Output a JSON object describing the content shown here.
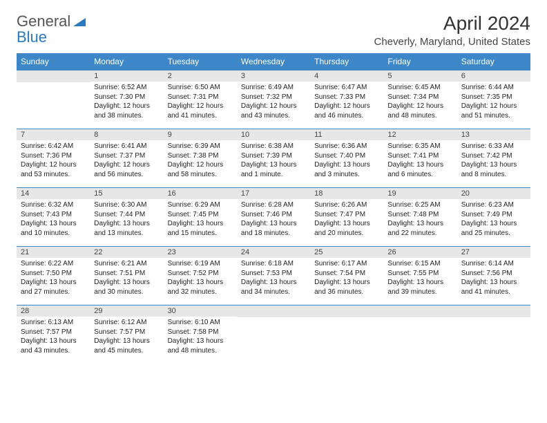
{
  "brand": {
    "part1": "General",
    "part2": "Blue"
  },
  "title": "April 2024",
  "location": "Cheverly, Maryland, United States",
  "colors": {
    "header_bg": "#3d87c9",
    "header_text": "#ffffff",
    "daynum_bg": "#e7e7e7",
    "rule": "#3d87c9",
    "brand_blue": "#2a7ac0",
    "brand_gray": "#555555",
    "body_text": "#222222"
  },
  "weekdays": [
    "Sunday",
    "Monday",
    "Tuesday",
    "Wednesday",
    "Thursday",
    "Friday",
    "Saturday"
  ],
  "weeks": [
    [
      null,
      {
        "n": "1",
        "sr": "Sunrise: 6:52 AM",
        "ss": "Sunset: 7:30 PM",
        "d1": "Daylight: 12 hours",
        "d2": "and 38 minutes."
      },
      {
        "n": "2",
        "sr": "Sunrise: 6:50 AM",
        "ss": "Sunset: 7:31 PM",
        "d1": "Daylight: 12 hours",
        "d2": "and 41 minutes."
      },
      {
        "n": "3",
        "sr": "Sunrise: 6:49 AM",
        "ss": "Sunset: 7:32 PM",
        "d1": "Daylight: 12 hours",
        "d2": "and 43 minutes."
      },
      {
        "n": "4",
        "sr": "Sunrise: 6:47 AM",
        "ss": "Sunset: 7:33 PM",
        "d1": "Daylight: 12 hours",
        "d2": "and 46 minutes."
      },
      {
        "n": "5",
        "sr": "Sunrise: 6:45 AM",
        "ss": "Sunset: 7:34 PM",
        "d1": "Daylight: 12 hours",
        "d2": "and 48 minutes."
      },
      {
        "n": "6",
        "sr": "Sunrise: 6:44 AM",
        "ss": "Sunset: 7:35 PM",
        "d1": "Daylight: 12 hours",
        "d2": "and 51 minutes."
      }
    ],
    [
      {
        "n": "7",
        "sr": "Sunrise: 6:42 AM",
        "ss": "Sunset: 7:36 PM",
        "d1": "Daylight: 12 hours",
        "d2": "and 53 minutes."
      },
      {
        "n": "8",
        "sr": "Sunrise: 6:41 AM",
        "ss": "Sunset: 7:37 PM",
        "d1": "Daylight: 12 hours",
        "d2": "and 56 minutes."
      },
      {
        "n": "9",
        "sr": "Sunrise: 6:39 AM",
        "ss": "Sunset: 7:38 PM",
        "d1": "Daylight: 12 hours",
        "d2": "and 58 minutes."
      },
      {
        "n": "10",
        "sr": "Sunrise: 6:38 AM",
        "ss": "Sunset: 7:39 PM",
        "d1": "Daylight: 13 hours",
        "d2": "and 1 minute."
      },
      {
        "n": "11",
        "sr": "Sunrise: 6:36 AM",
        "ss": "Sunset: 7:40 PM",
        "d1": "Daylight: 13 hours",
        "d2": "and 3 minutes."
      },
      {
        "n": "12",
        "sr": "Sunrise: 6:35 AM",
        "ss": "Sunset: 7:41 PM",
        "d1": "Daylight: 13 hours",
        "d2": "and 6 minutes."
      },
      {
        "n": "13",
        "sr": "Sunrise: 6:33 AM",
        "ss": "Sunset: 7:42 PM",
        "d1": "Daylight: 13 hours",
        "d2": "and 8 minutes."
      }
    ],
    [
      {
        "n": "14",
        "sr": "Sunrise: 6:32 AM",
        "ss": "Sunset: 7:43 PM",
        "d1": "Daylight: 13 hours",
        "d2": "and 10 minutes."
      },
      {
        "n": "15",
        "sr": "Sunrise: 6:30 AM",
        "ss": "Sunset: 7:44 PM",
        "d1": "Daylight: 13 hours",
        "d2": "and 13 minutes."
      },
      {
        "n": "16",
        "sr": "Sunrise: 6:29 AM",
        "ss": "Sunset: 7:45 PM",
        "d1": "Daylight: 13 hours",
        "d2": "and 15 minutes."
      },
      {
        "n": "17",
        "sr": "Sunrise: 6:28 AM",
        "ss": "Sunset: 7:46 PM",
        "d1": "Daylight: 13 hours",
        "d2": "and 18 minutes."
      },
      {
        "n": "18",
        "sr": "Sunrise: 6:26 AM",
        "ss": "Sunset: 7:47 PM",
        "d1": "Daylight: 13 hours",
        "d2": "and 20 minutes."
      },
      {
        "n": "19",
        "sr": "Sunrise: 6:25 AM",
        "ss": "Sunset: 7:48 PM",
        "d1": "Daylight: 13 hours",
        "d2": "and 22 minutes."
      },
      {
        "n": "20",
        "sr": "Sunrise: 6:23 AM",
        "ss": "Sunset: 7:49 PM",
        "d1": "Daylight: 13 hours",
        "d2": "and 25 minutes."
      }
    ],
    [
      {
        "n": "21",
        "sr": "Sunrise: 6:22 AM",
        "ss": "Sunset: 7:50 PM",
        "d1": "Daylight: 13 hours",
        "d2": "and 27 minutes."
      },
      {
        "n": "22",
        "sr": "Sunrise: 6:21 AM",
        "ss": "Sunset: 7:51 PM",
        "d1": "Daylight: 13 hours",
        "d2": "and 30 minutes."
      },
      {
        "n": "23",
        "sr": "Sunrise: 6:19 AM",
        "ss": "Sunset: 7:52 PM",
        "d1": "Daylight: 13 hours",
        "d2": "and 32 minutes."
      },
      {
        "n": "24",
        "sr": "Sunrise: 6:18 AM",
        "ss": "Sunset: 7:53 PM",
        "d1": "Daylight: 13 hours",
        "d2": "and 34 minutes."
      },
      {
        "n": "25",
        "sr": "Sunrise: 6:17 AM",
        "ss": "Sunset: 7:54 PM",
        "d1": "Daylight: 13 hours",
        "d2": "and 36 minutes."
      },
      {
        "n": "26",
        "sr": "Sunrise: 6:15 AM",
        "ss": "Sunset: 7:55 PM",
        "d1": "Daylight: 13 hours",
        "d2": "and 39 minutes."
      },
      {
        "n": "27",
        "sr": "Sunrise: 6:14 AM",
        "ss": "Sunset: 7:56 PM",
        "d1": "Daylight: 13 hours",
        "d2": "and 41 minutes."
      }
    ],
    [
      {
        "n": "28",
        "sr": "Sunrise: 6:13 AM",
        "ss": "Sunset: 7:57 PM",
        "d1": "Daylight: 13 hours",
        "d2": "and 43 minutes."
      },
      {
        "n": "29",
        "sr": "Sunrise: 6:12 AM",
        "ss": "Sunset: 7:57 PM",
        "d1": "Daylight: 13 hours",
        "d2": "and 45 minutes."
      },
      {
        "n": "30",
        "sr": "Sunrise: 6:10 AM",
        "ss": "Sunset: 7:58 PM",
        "d1": "Daylight: 13 hours",
        "d2": "and 48 minutes."
      },
      null,
      null,
      null,
      null
    ]
  ]
}
